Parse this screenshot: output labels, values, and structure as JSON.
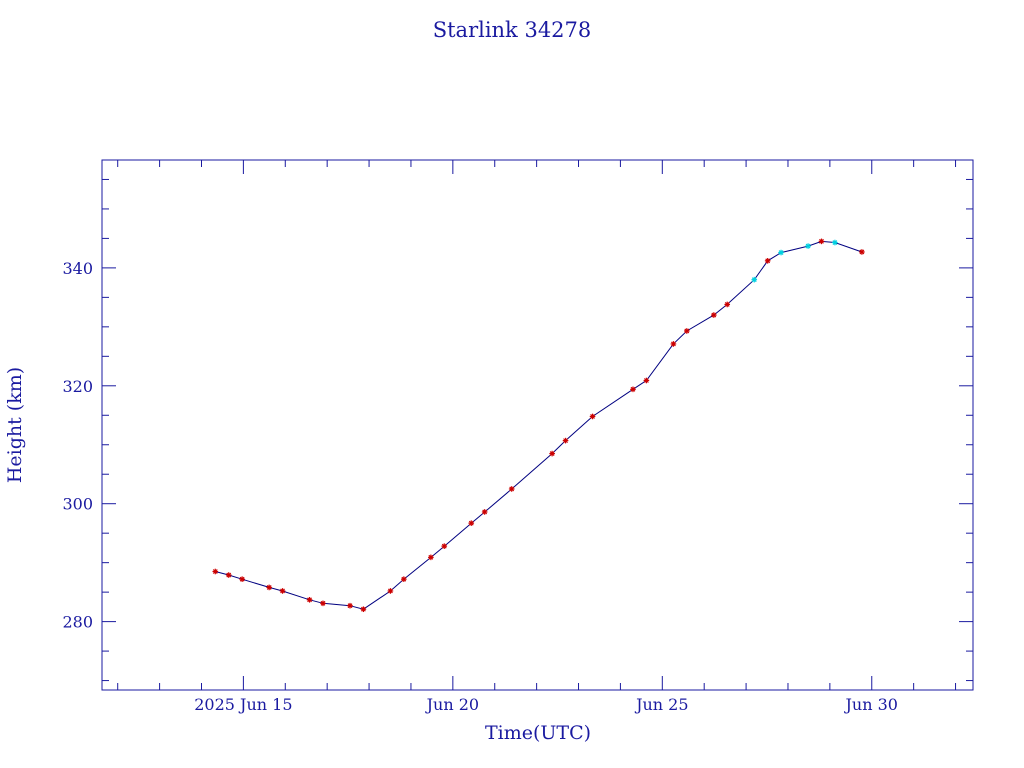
{
  "chart_data": {
    "type": "line",
    "title": "Starlink 34278",
    "xlabel": "Time(UTC)",
    "ylabel": "Height (km)",
    "xlim": [
      "2025-06-11T15:00",
      "2025-07-02T10:00"
    ],
    "ylim": [
      268.4,
      358.3
    ],
    "x_ticks": [
      {
        "date": "2025-06-15",
        "label": "2025 Jun 15"
      },
      {
        "date": "2025-06-20",
        "label": "Jun 20"
      },
      {
        "date": "2025-06-25",
        "label": "Jun 25"
      },
      {
        "date": "2025-06-30",
        "label": "Jun 30"
      }
    ],
    "y_ticks": [
      280,
      300,
      320,
      340
    ],
    "grid": false,
    "colors": {
      "axes": "#1a1aa0",
      "line": "#000080",
      "marker": "#cc0000",
      "marker_alt": "#00d0e0"
    },
    "series": [
      {
        "points": [
          {
            "x": "2025-06-14T07:54",
            "y": 288.5,
            "m": "red"
          },
          {
            "x": "2025-06-14T15:36",
            "y": 287.9,
            "m": "red"
          },
          {
            "x": "2025-06-14T23:17",
            "y": 287.2,
            "m": "red"
          },
          {
            "x": "2025-06-15T14:46",
            "y": 285.8,
            "m": "red"
          },
          {
            "x": "2025-06-15T22:26",
            "y": 285.2,
            "m": "red"
          },
          {
            "x": "2025-06-16T13:55",
            "y": 283.7,
            "m": "red"
          },
          {
            "x": "2025-06-16T21:36",
            "y": 283.1,
            "m": "red"
          },
          {
            "x": "2025-06-17T13:05",
            "y": 282.7,
            "m": "red"
          },
          {
            "x": "2025-06-17T20:45",
            "y": 282.1,
            "m": "red"
          },
          {
            "x": "2025-06-18T12:14",
            "y": 285.2,
            "m": "red"
          },
          {
            "x": "2025-06-18T19:55",
            "y": 287.2,
            "m": "red"
          },
          {
            "x": "2025-06-19T11:24",
            "y": 290.9,
            "m": "red"
          },
          {
            "x": "2025-06-19T19:05",
            "y": 292.8,
            "m": "red"
          },
          {
            "x": "2025-06-20T10:33",
            "y": 296.7,
            "m": "red"
          },
          {
            "x": "2025-06-20T18:14",
            "y": 298.6,
            "m": "red"
          },
          {
            "x": "2025-06-21T09:43",
            "y": 302.5,
            "m": "red"
          },
          {
            "x": "2025-06-22T08:53",
            "y": 308.5,
            "m": "red"
          },
          {
            "x": "2025-06-22T16:34",
            "y": 310.7,
            "m": "red"
          },
          {
            "x": "2025-06-23T08:02",
            "y": 314.8,
            "m": "red"
          },
          {
            "x": "2025-06-24T07:12",
            "y": 319.4,
            "m": "red"
          },
          {
            "x": "2025-06-24T14:53",
            "y": 320.9,
            "m": "red"
          },
          {
            "x": "2025-06-25T06:22",
            "y": 327.1,
            "m": "red"
          },
          {
            "x": "2025-06-25T14:02",
            "y": 329.3,
            "m": "red"
          },
          {
            "x": "2025-06-26T05:31",
            "y": 332.0,
            "m": "red"
          },
          {
            "x": "2025-06-26T13:12",
            "y": 333.8,
            "m": "red"
          },
          {
            "x": "2025-06-27T04:41",
            "y": 338.0,
            "m": "cyan"
          },
          {
            "x": "2025-06-27T12:22",
            "y": 341.2,
            "m": "red"
          },
          {
            "x": "2025-06-27T20:02",
            "y": 342.6,
            "m": "cyan"
          },
          {
            "x": "2025-06-28T11:31",
            "y": 343.7,
            "m": "cyan"
          },
          {
            "x": "2025-06-28T19:12",
            "y": 344.5,
            "m": "red"
          },
          {
            "x": "2025-06-29T02:53",
            "y": 344.3,
            "m": "cyan"
          },
          {
            "x": "2025-06-29T18:21",
            "y": 342.7,
            "m": "red"
          }
        ]
      }
    ]
  }
}
